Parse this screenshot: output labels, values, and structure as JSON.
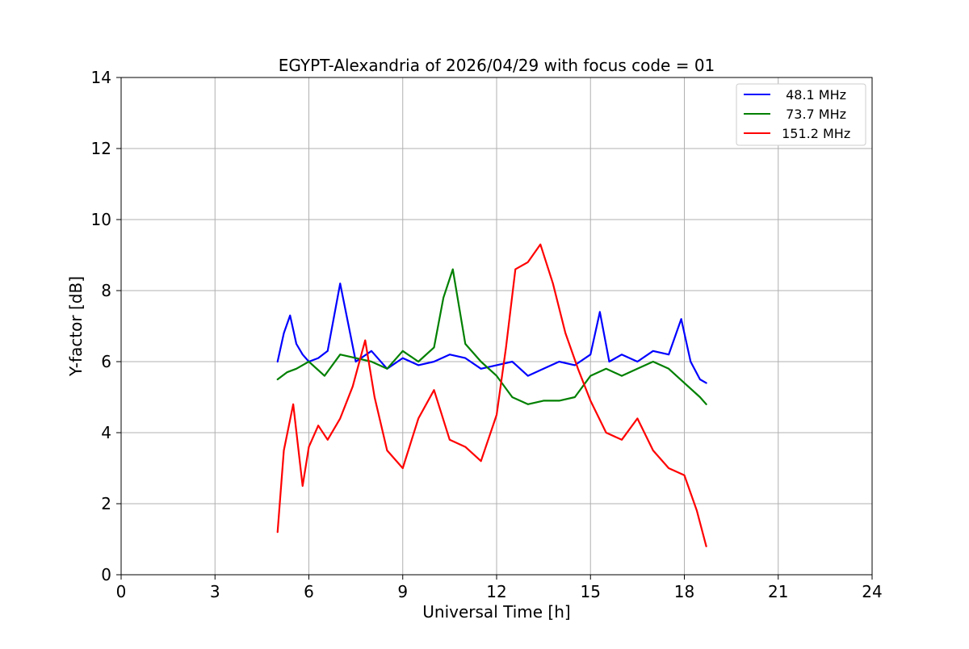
{
  "chart_data": {
    "type": "line",
    "title": "EGYPT-Alexandria of 2026/04/29 with focus code = 01",
    "xlabel": "Universal Time [h]",
    "ylabel": "Y-factor [dB]",
    "xlim": [
      0,
      24
    ],
    "ylim": [
      0,
      14
    ],
    "xticks": [
      0,
      3,
      6,
      9,
      12,
      15,
      18,
      21,
      24
    ],
    "yticks": [
      0,
      2,
      4,
      6,
      8,
      10,
      12,
      14
    ],
    "grid": true,
    "legend_position": "top-right",
    "series": [
      {
        "name": " 48.1 MHz",
        "color": "#0000ff",
        "x": [
          5.0,
          5.2,
          5.4,
          5.6,
          5.8,
          6.0,
          6.3,
          6.6,
          7.0,
          7.5,
          8.0,
          8.5,
          9.0,
          9.5,
          10.0,
          10.5,
          11.0,
          11.5,
          12.0,
          12.5,
          13.0,
          13.5,
          14.0,
          14.5,
          15.0,
          15.3,
          15.6,
          16.0,
          16.5,
          17.0,
          17.5,
          17.9,
          18.2,
          18.5,
          18.7
        ],
        "y": [
          6.0,
          6.8,
          7.3,
          6.5,
          6.2,
          6.0,
          6.1,
          6.3,
          8.2,
          6.0,
          6.3,
          5.8,
          6.1,
          5.9,
          6.0,
          6.2,
          6.1,
          5.8,
          5.9,
          6.0,
          5.6,
          5.8,
          6.0,
          5.9,
          6.2,
          7.4,
          6.0,
          6.2,
          6.0,
          6.3,
          6.2,
          7.2,
          6.0,
          5.5,
          5.4
        ]
      },
      {
        "name": " 73.7 MHz",
        "color": "#008000",
        "x": [
          5.0,
          5.3,
          5.6,
          6.0,
          6.5,
          7.0,
          7.5,
          8.0,
          8.5,
          9.0,
          9.5,
          10.0,
          10.3,
          10.6,
          11.0,
          11.5,
          12.0,
          12.5,
          13.0,
          13.5,
          14.0,
          14.5,
          15.0,
          15.5,
          16.0,
          16.5,
          17.0,
          17.5,
          18.0,
          18.5,
          18.7
        ],
        "y": [
          5.5,
          5.7,
          5.8,
          6.0,
          5.6,
          6.2,
          6.1,
          6.0,
          5.8,
          6.3,
          6.0,
          6.4,
          7.8,
          8.6,
          6.5,
          6.0,
          5.6,
          5.0,
          4.8,
          4.9,
          4.9,
          5.0,
          5.6,
          5.8,
          5.6,
          5.8,
          6.0,
          5.8,
          5.4,
          5.0,
          4.8
        ]
      },
      {
        "name": " 151.2 MHz",
        "color": "#ff0000",
        "x": [
          5.0,
          5.2,
          5.5,
          5.8,
          6.0,
          6.3,
          6.6,
          7.0,
          7.4,
          7.8,
          8.1,
          8.5,
          9.0,
          9.5,
          10.0,
          10.5,
          11.0,
          11.5,
          12.0,
          12.3,
          12.6,
          13.0,
          13.4,
          13.8,
          14.2,
          14.6,
          15.0,
          15.5,
          16.0,
          16.5,
          17.0,
          17.5,
          18.0,
          18.4,
          18.7
        ],
        "y": [
          1.2,
          3.5,
          4.8,
          2.5,
          3.6,
          4.2,
          3.8,
          4.4,
          5.3,
          6.6,
          5.0,
          3.5,
          3.0,
          4.4,
          5.2,
          3.8,
          3.6,
          3.2,
          4.5,
          6.4,
          8.6,
          8.8,
          9.3,
          8.2,
          6.8,
          5.8,
          4.9,
          4.0,
          3.8,
          4.4,
          3.5,
          3.0,
          2.8,
          1.8,
          0.8
        ]
      }
    ]
  }
}
